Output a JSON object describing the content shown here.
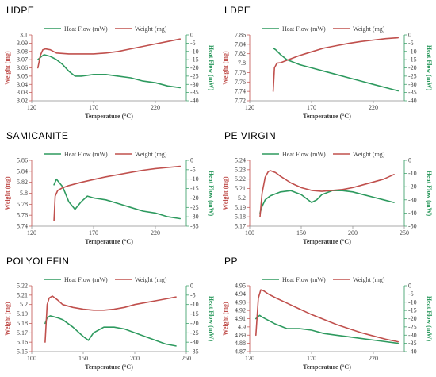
{
  "colors": {
    "weight": "#c0504d",
    "heat": "#2e9a5f",
    "axis_right": "#2e9a5f",
    "axis_left": "#c0504d"
  },
  "chart_data": [
    {
      "type": "line",
      "title": "HDPE",
      "legend": [
        "Heat Flow (mW)",
        "Weight (mg)"
      ],
      "xlabel": "Temperature (°C)",
      "ylabel": "Weight (mg)",
      "y2label": "Heat Flow (mW)",
      "xlim": [
        120,
        245
      ],
      "xticks": [
        120,
        170,
        220
      ],
      "ylim": [
        3.02,
        3.1
      ],
      "yticks": [
        3.02,
        3.03,
        3.04,
        3.05,
        3.06,
        3.07,
        3.08,
        3.09,
        3.1
      ],
      "y2lim": [
        -40,
        0
      ],
      "y2ticks": [
        0,
        -5,
        -10,
        -15,
        -20,
        -25,
        -30,
        -35,
        -40
      ],
      "series": [
        {
          "name": "Heat Flow (mW)",
          "axis": "right",
          "x": [
            125,
            128,
            130,
            135,
            140,
            145,
            150,
            155,
            160,
            170,
            180,
            190,
            200,
            210,
            220,
            230,
            240
          ],
          "y": [
            -15,
            -13,
            -12,
            -13,
            -15,
            -18,
            -22,
            -25,
            -25,
            -24,
            -24,
            -25,
            -26,
            -28,
            -29,
            -31,
            -32
          ]
        },
        {
          "name": "Weight (mg)",
          "axis": "left",
          "x": [
            125,
            127,
            129,
            131,
            135,
            140,
            150,
            160,
            170,
            180,
            190,
            200,
            210,
            220,
            230,
            240
          ],
          "y": [
            3.06,
            3.075,
            3.082,
            3.083,
            3.082,
            3.078,
            3.077,
            3.077,
            3.077,
            3.078,
            3.08,
            3.083,
            3.086,
            3.089,
            3.092,
            3.095
          ]
        }
      ]
    },
    {
      "type": "line",
      "title": "LDPE",
      "legend": [
        "Heat Flow (mW)",
        "Weight (mg)"
      ],
      "xlabel": "Temperature (°C)",
      "ylabel": "Weight (mg)",
      "y2label": "Heat Flow (mW)",
      "xlim": [
        120,
        245
      ],
      "xticks": [
        120,
        170,
        220
      ],
      "ylim": [
        7.72,
        7.86
      ],
      "yticks": [
        7.72,
        7.74,
        7.76,
        7.78,
        7.8,
        7.82,
        7.84,
        7.86
      ],
      "y2lim": [
        -40,
        0
      ],
      "y2ticks": [
        0,
        -5,
        -10,
        -15,
        -20,
        -25,
        -30,
        -35,
        -40
      ],
      "series": [
        {
          "name": "Heat Flow (mW)",
          "axis": "right",
          "x": [
            139,
            141,
            145,
            150,
            160,
            170,
            180,
            190,
            200,
            210,
            220,
            230,
            240
          ],
          "y": [
            -8,
            -9,
            -12,
            -15,
            -18,
            -20,
            -22,
            -24,
            -26,
            -28,
            -30,
            -32,
            -34
          ]
        },
        {
          "name": "Weight (mg)",
          "axis": "left",
          "x": [
            139,
            140,
            142,
            145,
            150,
            160,
            170,
            180,
            190,
            200,
            210,
            220,
            230,
            240
          ],
          "y": [
            7.74,
            7.79,
            7.8,
            7.801,
            7.806,
            7.816,
            7.824,
            7.832,
            7.837,
            7.842,
            7.846,
            7.849,
            7.852,
            7.854
          ]
        }
      ]
    },
    {
      "type": "line",
      "title": "SAMICANITE",
      "legend": [
        "Heat Flow (mW)",
        "Weight (mg)"
      ],
      "xlabel": "Temperature (°C)",
      "ylabel": "Weight (mg)",
      "y2label": "Heat Flow (mW)",
      "xlim": [
        120,
        245
      ],
      "xticks": [
        120,
        170,
        220
      ],
      "ylim": [
        5.74,
        5.86
      ],
      "yticks": [
        5.74,
        5.76,
        5.78,
        5.8,
        5.82,
        5.84,
        5.86
      ],
      "y2lim": [
        -35,
        0
      ],
      "y2ticks": [
        0,
        -5,
        -10,
        -15,
        -20,
        -25,
        -30,
        -35
      ],
      "series": [
        {
          "name": "Heat Flow (mW)",
          "axis": "right",
          "x": [
            138,
            140,
            145,
            150,
            155,
            160,
            165,
            170,
            180,
            190,
            200,
            210,
            220,
            230,
            240
          ],
          "y": [
            -13,
            -10,
            -14,
            -22,
            -26,
            -22,
            -19,
            -20,
            -21,
            -23,
            -25,
            -27,
            -28,
            -30,
            -31
          ]
        },
        {
          "name": "Weight (mg)",
          "axis": "left",
          "x": [
            138,
            139,
            141,
            145,
            150,
            160,
            170,
            180,
            190,
            200,
            210,
            220,
            230,
            240
          ],
          "y": [
            5.75,
            5.795,
            5.805,
            5.81,
            5.814,
            5.82,
            5.825,
            5.83,
            5.834,
            5.838,
            5.842,
            5.845,
            5.847,
            5.849
          ]
        }
      ]
    },
    {
      "type": "line",
      "title": "PE VIRGIN",
      "legend": [
        "Heat Flow (mW)",
        "Weight (mg)"
      ],
      "xlabel": "Temperature (°C)",
      "ylabel": "Weight (mg)",
      "y2label": "Heat Flow (mW)",
      "xlim": [
        100,
        250
      ],
      "xticks": [
        100,
        150,
        200,
        250
      ],
      "ylim": [
        5.17,
        5.24
      ],
      "yticks": [
        5.17,
        5.18,
        5.19,
        5.2,
        5.21,
        5.22,
        5.23,
        5.24
      ],
      "y2lim": [
        -50,
        0
      ],
      "y2ticks": [
        0,
        -10,
        -20,
        -30,
        -40,
        -50
      ],
      "series": [
        {
          "name": "Heat Flow (mW)",
          "axis": "right",
          "x": [
            110,
            112,
            115,
            120,
            130,
            140,
            150,
            160,
            165,
            170,
            180,
            190,
            200,
            210,
            220,
            230,
            240
          ],
          "y": [
            -40,
            -35,
            -30,
            -27,
            -24,
            -23,
            -26,
            -32,
            -30,
            -26,
            -23,
            -23,
            -24,
            -26,
            -28,
            -30,
            -32
          ]
        },
        {
          "name": "Weight (mg)",
          "axis": "left",
          "x": [
            110,
            112,
            115,
            118,
            120,
            125,
            130,
            140,
            150,
            160,
            170,
            180,
            190,
            200,
            210,
            220,
            230,
            240
          ],
          "y": [
            5.18,
            5.205,
            5.222,
            5.228,
            5.229,
            5.227,
            5.223,
            5.216,
            5.211,
            5.208,
            5.207,
            5.208,
            5.209,
            5.211,
            5.214,
            5.217,
            5.22,
            5.225
          ]
        }
      ]
    },
    {
      "type": "line",
      "title": "POLYOLEFIN",
      "legend": [
        "Heat Flow (mW)",
        "Weight (mg)"
      ],
      "xlabel": "Temperature (°C)",
      "ylabel": "Weight (mg)",
      "y2label": "Heat Flow (mW)",
      "xlim": [
        100,
        250
      ],
      "xticks": [
        100,
        150,
        200,
        250
      ],
      "ylim": [
        5.15,
        5.22
      ],
      "yticks": [
        5.15,
        5.16,
        5.17,
        5.18,
        5.19,
        5.2,
        5.21,
        5.22
      ],
      "y2lim": [
        -35,
        0
      ],
      "y2ticks": [
        0,
        -5,
        -10,
        -15,
        -20,
        -25,
        -30,
        -35
      ],
      "series": [
        {
          "name": "Heat Flow (mW)",
          "axis": "right",
          "x": [
            113,
            115,
            118,
            125,
            130,
            140,
            150,
            155,
            160,
            170,
            180,
            190,
            200,
            210,
            220,
            230,
            240
          ],
          "y": [
            -20,
            -17,
            -16,
            -17,
            -18,
            -22,
            -27,
            -29,
            -25,
            -22,
            -22,
            -23,
            -25,
            -27,
            -29,
            -31,
            -32
          ]
        },
        {
          "name": "Weight (mg)",
          "axis": "left",
          "x": [
            113,
            115,
            117,
            120,
            125,
            130,
            140,
            150,
            160,
            170,
            180,
            190,
            200,
            210,
            220,
            230,
            240
          ],
          "y": [
            5.16,
            5.2,
            5.207,
            5.209,
            5.205,
            5.2,
            5.197,
            5.195,
            5.194,
            5.194,
            5.195,
            5.197,
            5.2,
            5.202,
            5.204,
            5.206,
            5.208
          ]
        }
      ]
    },
    {
      "type": "line",
      "title": "PP",
      "legend": [
        "Heat Flow (mW)",
        "Weight (mg)"
      ],
      "xlabel": "Temperature (°C)",
      "ylabel": "Weight (mg)",
      "y2label": "Heat Flow (mW)",
      "xlim": [
        120,
        245
      ],
      "xticks": [
        120,
        170,
        220
      ],
      "ylim": [
        4.87,
        4.95
      ],
      "yticks": [
        4.87,
        4.88,
        4.89,
        4.9,
        4.91,
        4.92,
        4.93,
        4.94,
        4.95
      ],
      "y2lim": [
        -40,
        0
      ],
      "y2ticks": [
        0,
        -5,
        -10,
        -15,
        -20,
        -25,
        -30,
        -35,
        -40
      ],
      "series": [
        {
          "name": "Heat Flow (mW)",
          "axis": "right",
          "x": [
            125,
            128,
            130,
            135,
            140,
            150,
            160,
            170,
            180,
            190,
            200,
            210,
            220,
            230,
            240
          ],
          "y": [
            -20,
            -18,
            -19,
            -21,
            -23,
            -26,
            -26,
            -27,
            -29,
            -30,
            -31,
            -32,
            -33,
            -34,
            -35
          ]
        },
        {
          "name": "Weight (mg)",
          "axis": "left",
          "x": [
            125,
            127,
            129,
            131,
            135,
            140,
            150,
            160,
            170,
            180,
            190,
            200,
            210,
            220,
            230,
            240
          ],
          "y": [
            4.89,
            4.935,
            4.945,
            4.944,
            4.94,
            4.936,
            4.929,
            4.922,
            4.915,
            4.909,
            4.903,
            4.898,
            4.893,
            4.889,
            4.885,
            4.882
          ]
        }
      ]
    }
  ]
}
